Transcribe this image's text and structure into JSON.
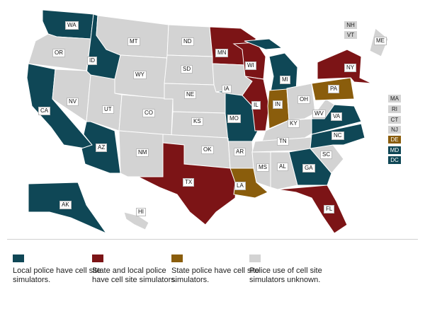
{
  "colors": {
    "local": "#0f4756",
    "state_local": "#7c1416",
    "state": "#8a5d0c",
    "unknown": "#d3d3d3",
    "border": "#ffffff"
  },
  "legend": [
    {
      "category": "local",
      "label": "Local police have cell site simulators."
    },
    {
      "category": "state_local",
      "label": "State and local police have cell site simulators."
    },
    {
      "category": "state",
      "label": "State police have cell site simulators."
    },
    {
      "category": "unknown",
      "label": "Police use of cell site simulators unknown."
    }
  ],
  "states": [
    {
      "abbr": "WA",
      "category": "local"
    },
    {
      "abbr": "OR",
      "category": "unknown"
    },
    {
      "abbr": "CA",
      "category": "local"
    },
    {
      "abbr": "ID",
      "category": "local"
    },
    {
      "abbr": "NV",
      "category": "unknown"
    },
    {
      "abbr": "AZ",
      "category": "local"
    },
    {
      "abbr": "MT",
      "category": "unknown"
    },
    {
      "abbr": "WY",
      "category": "unknown"
    },
    {
      "abbr": "UT",
      "category": "unknown"
    },
    {
      "abbr": "CO",
      "category": "unknown"
    },
    {
      "abbr": "NM",
      "category": "unknown"
    },
    {
      "abbr": "ND",
      "category": "unknown"
    },
    {
      "abbr": "SD",
      "category": "unknown"
    },
    {
      "abbr": "NE",
      "category": "unknown"
    },
    {
      "abbr": "KS",
      "category": "unknown"
    },
    {
      "abbr": "OK",
      "category": "unknown"
    },
    {
      "abbr": "TX",
      "category": "state_local"
    },
    {
      "abbr": "MN",
      "category": "state_local"
    },
    {
      "abbr": "IA",
      "category": "unknown"
    },
    {
      "abbr": "MO",
      "category": "local"
    },
    {
      "abbr": "AR",
      "category": "unknown"
    },
    {
      "abbr": "LA",
      "category": "state"
    },
    {
      "abbr": "WI",
      "category": "state_local"
    },
    {
      "abbr": "IL",
      "category": "state_local"
    },
    {
      "abbr": "MI",
      "category": "local"
    },
    {
      "abbr": "IN",
      "category": "state"
    },
    {
      "abbr": "OH",
      "category": "unknown"
    },
    {
      "abbr": "KY",
      "category": "unknown"
    },
    {
      "abbr": "TN",
      "category": "unknown"
    },
    {
      "abbr": "MS",
      "category": "unknown"
    },
    {
      "abbr": "AL",
      "category": "unknown"
    },
    {
      "abbr": "GA",
      "category": "local"
    },
    {
      "abbr": "FL",
      "category": "state_local"
    },
    {
      "abbr": "SC",
      "category": "unknown"
    },
    {
      "abbr": "NC",
      "category": "local"
    },
    {
      "abbr": "VA",
      "category": "local"
    },
    {
      "abbr": "WV",
      "category": "unknown"
    },
    {
      "abbr": "PA",
      "category": "state"
    },
    {
      "abbr": "NY",
      "category": "state_local"
    },
    {
      "abbr": "ME",
      "category": "unknown"
    },
    {
      "abbr": "AK",
      "category": "local"
    },
    {
      "abbr": "HI",
      "category": "unknown"
    }
  ],
  "small_states": [
    {
      "abbr": "NH",
      "category": "unknown"
    },
    {
      "abbr": "VT",
      "category": "unknown"
    },
    {
      "abbr": "MA",
      "category": "unknown"
    },
    {
      "abbr": "RI",
      "category": "unknown"
    },
    {
      "abbr": "CT",
      "category": "unknown"
    },
    {
      "abbr": "NJ",
      "category": "unknown"
    },
    {
      "abbr": "DE",
      "category": "state"
    },
    {
      "abbr": "MD",
      "category": "local"
    },
    {
      "abbr": "DC",
      "category": "local"
    }
  ]
}
